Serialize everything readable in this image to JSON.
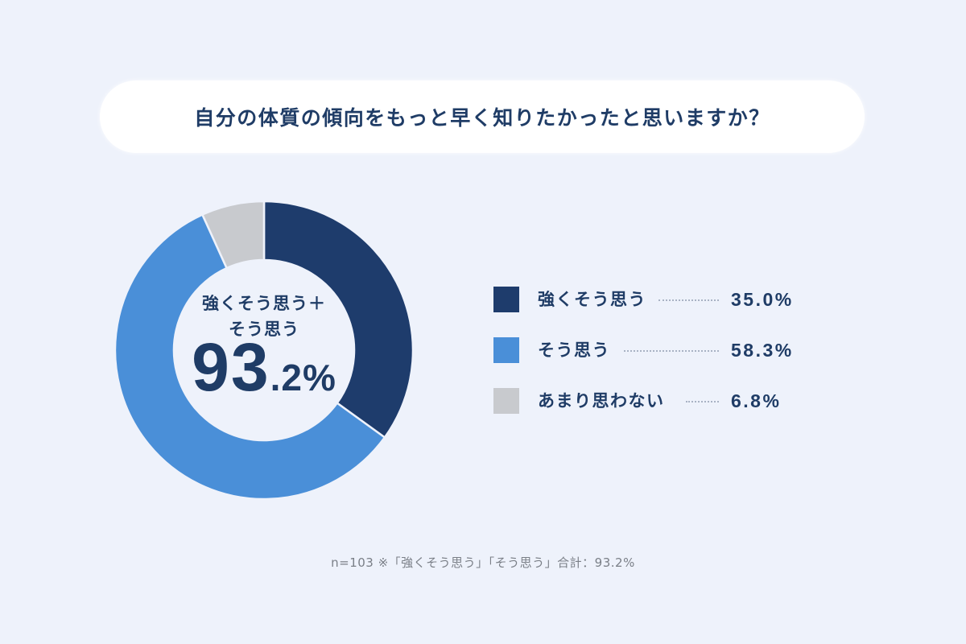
{
  "title": "自分の体質の傾向をもっと早く知りたかったと思いますか？",
  "center": {
    "line1": "強くそう思う＋",
    "line2": "そう思う",
    "value_big": "93",
    "value_small": ".2%"
  },
  "legend": [
    {
      "label": "強くそう思う",
      "value": "35.0%",
      "color": "#1e3c6c"
    },
    {
      "label": "そう思う",
      "value": "58.3%",
      "color": "#4a8fd8"
    },
    {
      "label": "あまり思わない",
      "value": "6.8%",
      "color": "#c8cace"
    }
  ],
  "footnote": "n=103 ※「強くそう思う」「そう思う」合計：93.2%",
  "colors": {
    "background": "#eef2fb",
    "text": "#1f3c66",
    "strong_agree": "#1e3c6c",
    "agree": "#4a8fd8",
    "disagree": "#c8cace"
  },
  "chart_data": {
    "type": "pie",
    "subtype": "donut",
    "title": "自分の体質の傾向をもっと早く知りたかったと思いますか？",
    "categories": [
      "強くそう思う",
      "そう思う",
      "あまり思わない"
    ],
    "values": [
      35.0,
      58.3,
      6.8
    ],
    "unit": "%",
    "colors": [
      "#1e3c6c",
      "#4a8fd8",
      "#c8cace"
    ],
    "center_annotation": "強くそう思う＋そう思う 93.2%",
    "legend_position": "right",
    "sample_size": 103,
    "note": "※「強くそう思う」「そう思う」合計：93.2%",
    "start_angle_deg": 0,
    "direction": "clockwise"
  }
}
